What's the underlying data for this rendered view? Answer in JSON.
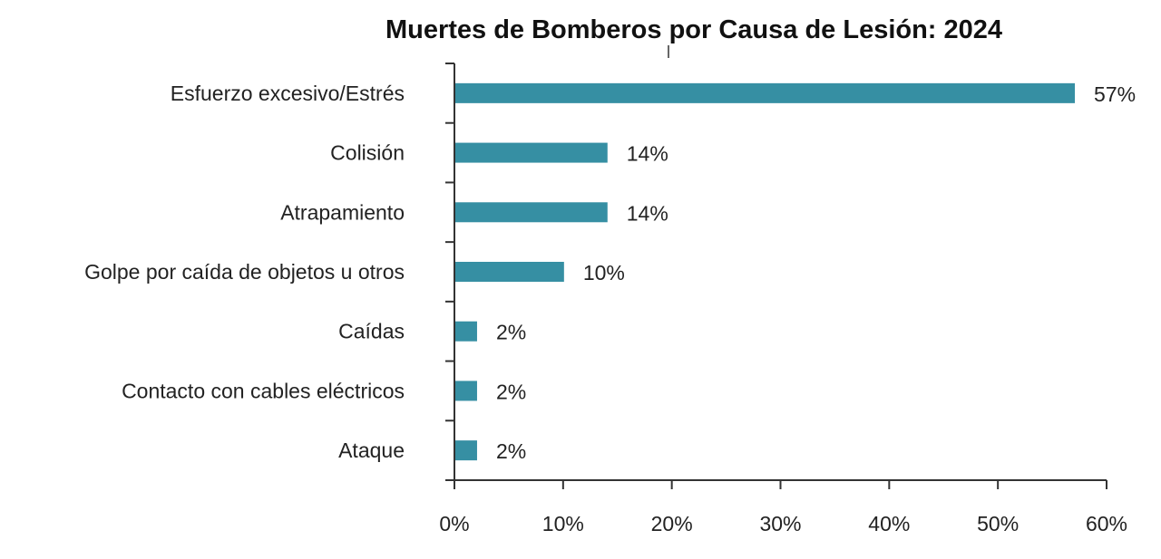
{
  "chart_data": {
    "type": "bar",
    "orientation": "horizontal",
    "title": "Muertes de Bomberos por Causa de Lesión: 2024",
    "xlabel": "",
    "ylabel": "",
    "categories": [
      "Esfuerzo excesivo/Estrés",
      "Colisión",
      "Atrapamiento",
      "Golpe por caída de objetos u otros",
      "Caídas",
      "Contacto con cables eléctricos",
      "Ataque"
    ],
    "values": [
      57,
      14,
      14,
      10,
      2,
      2,
      2
    ],
    "data_labels": [
      "57%",
      "14%",
      "14%",
      "10%",
      "2%",
      "2%",
      "2%"
    ],
    "xlim": [
      0,
      60
    ],
    "xticks": [
      0,
      10,
      20,
      30,
      40,
      50,
      60
    ],
    "xtick_labels": [
      "0%",
      "10%",
      "20%",
      "30%",
      "40%",
      "50%",
      "60%"
    ],
    "grid": false,
    "legend": "none",
    "bar_color": "#368fa3"
  }
}
